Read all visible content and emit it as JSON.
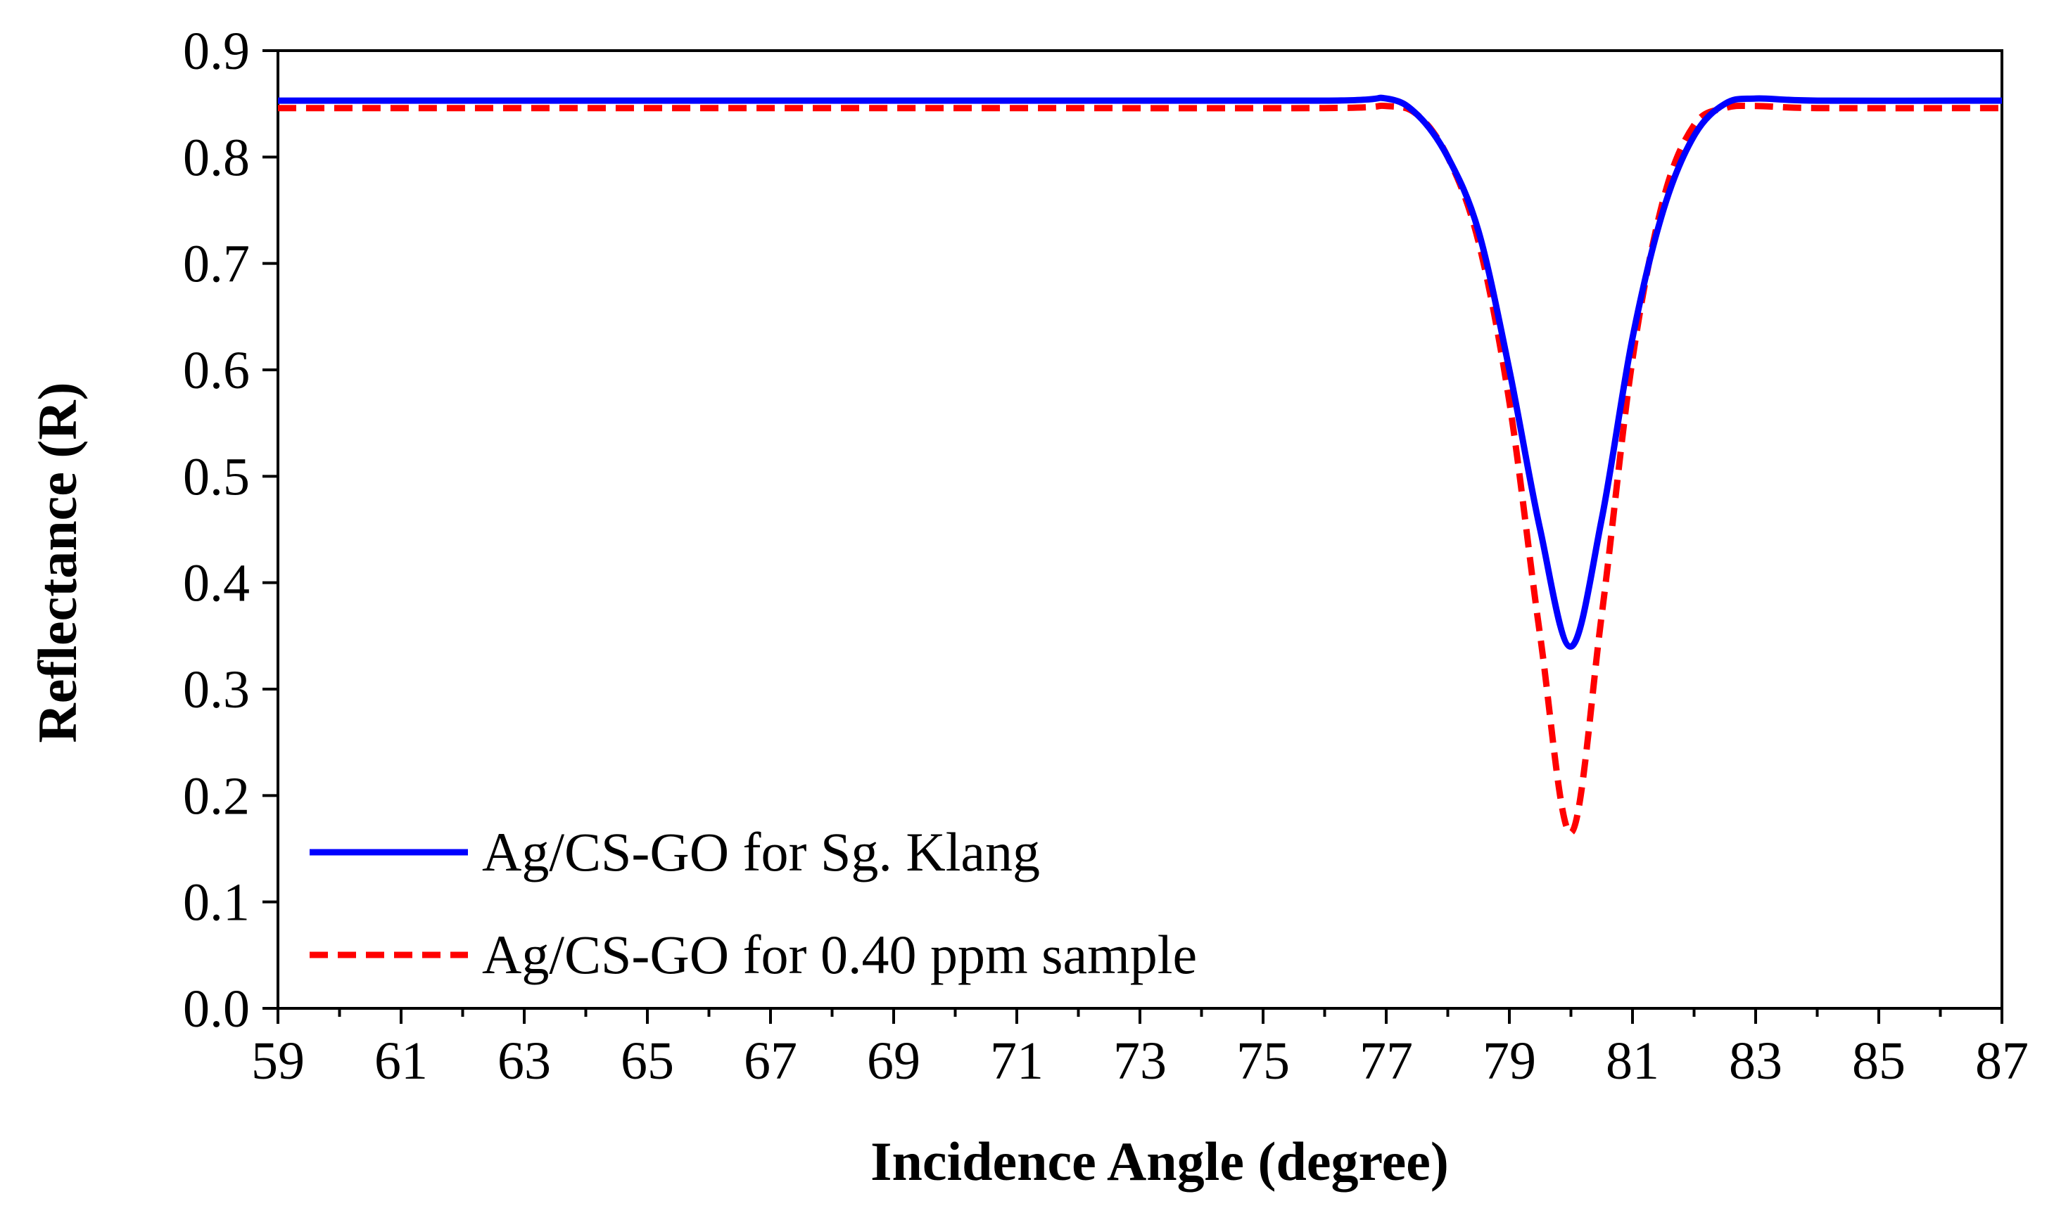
{
  "chart_data": {
    "type": "line",
    "title": "",
    "xlabel": "Incidence Angle (degree)",
    "ylabel": "Reflectance (R)",
    "xlim": [
      59,
      87
    ],
    "ylim": [
      0,
      0.9
    ],
    "xticks": [
      "59",
      "61",
      "63",
      "65",
      "67",
      "69",
      "71",
      "73",
      "75",
      "77",
      "79",
      "81",
      "83",
      "85",
      "87"
    ],
    "yticks": [
      "0.0",
      "0.1",
      "0.2",
      "0.3",
      "0.4",
      "0.5",
      "0.6",
      "0.7",
      "0.8",
      "0.9"
    ],
    "grid": false,
    "legend_position": "bottom-left",
    "series": [
      {
        "name": "Ag/CS-GO for Sg. Klang",
        "color": "#0000ff",
        "style": "solid",
        "x": [
          59,
          70,
          76,
          77,
          77.5,
          78,
          78.5,
          79,
          79.5,
          80,
          80.5,
          81,
          81.5,
          82,
          82.5,
          83,
          84,
          87
        ],
        "y": [
          0.853,
          0.853,
          0.853,
          0.855,
          0.84,
          0.8,
          0.73,
          0.6,
          0.45,
          0.34,
          0.46,
          0.63,
          0.75,
          0.82,
          0.85,
          0.855,
          0.853,
          0.853
        ]
      },
      {
        "name": "Ag/CS-GO for 0.40 ppm sample",
        "color": "#ff0000",
        "style": "dashed",
        "x": [
          59,
          70,
          76,
          77,
          77.5,
          78,
          78.5,
          79,
          79.5,
          80,
          80.5,
          81,
          81.5,
          82,
          82.5,
          83,
          84,
          87
        ],
        "y": [
          0.846,
          0.846,
          0.846,
          0.848,
          0.84,
          0.8,
          0.72,
          0.57,
          0.35,
          0.165,
          0.37,
          0.61,
          0.76,
          0.83,
          0.846,
          0.848,
          0.846,
          0.846
        ]
      }
    ]
  }
}
